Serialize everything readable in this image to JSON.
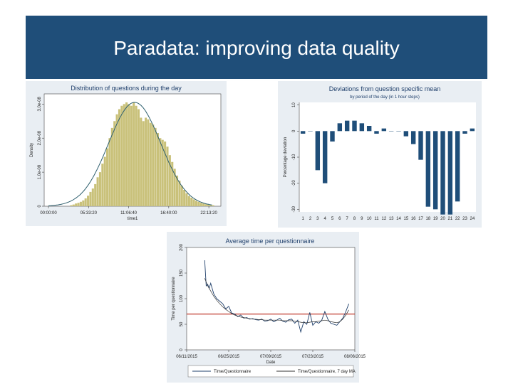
{
  "slide": {
    "title": "Paradata: improving data quality"
  },
  "chart_data": [
    {
      "type": "bar",
      "title": "Distribution of questions during the day",
      "xlabel": "time1",
      "ylabel": "Density",
      "x_tick_labels": [
        "00:00:00",
        "05:33:20",
        "11:06:40",
        "16:40:00",
        "22:13:20"
      ],
      "y_tick_labels": [
        "0",
        "1.0e-08",
        "2.0e-08",
        "3.0e-08"
      ],
      "xlim": [
        0,
        86000
      ],
      "ylim": [
        0,
        3.3e-08
      ],
      "bin_width": 1200,
      "histogram": {
        "x": [
          10800,
          12000,
          13200,
          14400,
          15600,
          16800,
          18000,
          19200,
          20400,
          21600,
          22800,
          24000,
          25200,
          26400,
          27600,
          28800,
          30000,
          31200,
          32400,
          33600,
          34800,
          36000,
          37200,
          38400,
          39600,
          40800,
          42000,
          43200,
          44400,
          45600,
          46800,
          48000,
          49200,
          50400,
          51600,
          52800,
          54000,
          55200,
          56400,
          57600,
          58800,
          60000,
          61200,
          62400,
          63600,
          64800,
          66000,
          67200,
          68400,
          69600,
          70800,
          72000,
          73200,
          74400,
          75600,
          76800,
          78000,
          79200,
          80400,
          81600
        ],
        "density": [
          3e-10,
          5e-10,
          8e-10,
          1e-09,
          1.3e-09,
          1.7e-09,
          2.3e-09,
          3.1e-09,
          4.2e-09,
          5.2e-09,
          6.5e-09,
          8.5e-09,
          1e-08,
          1.25e-08,
          1.45e-08,
          1.7e-08,
          2e-08,
          2.3e-08,
          2.5e-08,
          2.7e-08,
          2.85e-08,
          2.95e-08,
          3e-08,
          3.05e-08,
          3e-08,
          2.95e-08,
          3.05e-08,
          2.95e-08,
          2.85e-08,
          2.6e-08,
          2.5e-08,
          2.6e-08,
          2.55e-08,
          2.45e-08,
          2.4e-08,
          2.3e-08,
          2.15e-08,
          2e-08,
          1.95e-08,
          1.9e-08,
          1.75e-08,
          1.5e-08,
          1.3e-08,
          1.1e-08,
          9e-09,
          7.5e-09,
          6e-09,
          4.8e-09,
          3.8e-09,
          3e-09,
          2.5e-09,
          2e-09,
          1.6e-09,
          1.3e-09,
          1e-09,
          8e-10,
          6e-10,
          5e-10,
          4e-10,
          3e-10
        ]
      },
      "normal_curve": {
        "mean": 43000,
        "sd": 13000,
        "peak_density": 3.05e-08
      },
      "colors": {
        "bars": "#c9c17a",
        "curve": "#2e5f6e",
        "plot_bg": "#ffffff"
      }
    },
    {
      "type": "bar",
      "title": "Deviations from question specific mean",
      "subtitle": "by period of the day (in 1 hour steps)",
      "xlabel": "",
      "ylabel": "Percentage deviation",
      "ylim": [
        -31,
        11
      ],
      "y_ticks": [
        10,
        0,
        -10,
        -20,
        -30
      ],
      "categories": [
        "1",
        "2",
        "3",
        "4",
        "5",
        "6",
        "7",
        "8",
        "9",
        "10",
        "11",
        "12",
        "13",
        "14",
        "15",
        "16",
        "17",
        "18",
        "19",
        "20",
        "21",
        "22",
        "23",
        "24"
      ],
      "values": [
        -1,
        0,
        -15,
        -20,
        -4,
        3,
        4,
        4,
        3,
        2,
        -1,
        1,
        0,
        0,
        -2,
        -5,
        -11,
        -29,
        -30,
        -32,
        -32,
        -27,
        -1,
        1
      ],
      "colors": {
        "bars": "#1f4e79",
        "plot_bg": "#ffffff"
      }
    },
    {
      "type": "line",
      "title": "Average time per questionnaire",
      "xlabel": "Date",
      "ylabel": "Time per questionnaire",
      "x_tick_labels": [
        "06/11/2015",
        "06/25/2015",
        "07/09/2015",
        "07/23/2015",
        "08/06/2015"
      ],
      "xlim": [
        0,
        56
      ],
      "ylim": [
        0,
        200
      ],
      "y_ticks": [
        0,
        50,
        100,
        150,
        200
      ],
      "reference_line": {
        "y": 70,
        "color": "#c0392b"
      },
      "series": [
        {
          "name": "Time/Questionnaire",
          "color": "#1f3f6b",
          "x": [
            6,
            6.5,
            7,
            7.5,
            8,
            9,
            10,
            11,
            12,
            13,
            14,
            15,
            16,
            17,
            18,
            19,
            20,
            21,
            22,
            23,
            24,
            25,
            26,
            27,
            28,
            29,
            30,
            31,
            32,
            33,
            34,
            35,
            36,
            37,
            38,
            39,
            40,
            41,
            42,
            43,
            44,
            45,
            46,
            47,
            48,
            49,
            50,
            51,
            52,
            53,
            54
          ],
          "y": [
            175,
            125,
            128,
            120,
            130,
            110,
            100,
            95,
            90,
            80,
            85,
            72,
            70,
            65,
            68,
            62,
            63,
            60,
            61,
            59,
            58,
            60,
            56,
            57,
            60,
            55,
            58,
            62,
            56,
            54,
            59,
            60,
            52,
            58,
            35,
            55,
            50,
            73,
            48,
            55,
            52,
            58,
            75,
            60,
            52,
            50,
            48,
            55,
            62,
            75,
            90
          ]
        },
        {
          "name": "Time/Questionnaire, 7 day MA",
          "color": "#333333",
          "x": [
            6,
            7,
            8,
            9,
            10,
            11,
            12,
            13,
            14,
            15,
            16,
            17,
            18,
            19,
            20,
            21,
            22,
            23,
            24,
            25,
            26,
            27,
            28,
            29,
            30,
            31,
            32,
            33,
            34,
            35,
            36,
            37,
            38,
            39,
            40,
            41,
            42,
            43,
            44,
            45,
            46,
            47,
            48,
            49,
            50,
            51,
            52,
            53,
            54
          ],
          "y": [
            140,
            125,
            115,
            105,
            97,
            90,
            84,
            79,
            75,
            71,
            68,
            66,
            64,
            63,
            62,
            61,
            60,
            60,
            59,
            59,
            58,
            58,
            58,
            58,
            58,
            58,
            57,
            57,
            57,
            57,
            56,
            55,
            54,
            53,
            53,
            54,
            55,
            55,
            56,
            57,
            58,
            57,
            55,
            54,
            53,
            55,
            60,
            68,
            78
          ]
        }
      ],
      "legend": {
        "position": "bottom"
      }
    }
  ]
}
